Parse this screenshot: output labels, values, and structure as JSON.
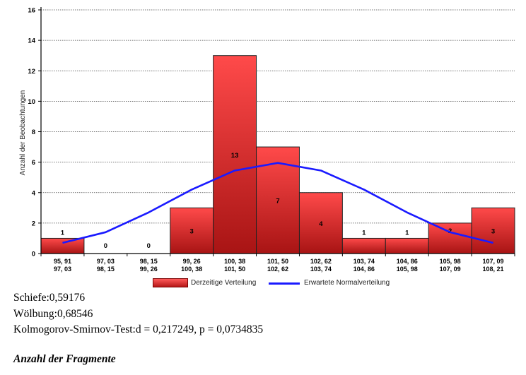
{
  "chart_data": {
    "type": "bar",
    "ylabel": "Anzahl der Beobachtungen",
    "ylim": [
      0,
      16
    ],
    "yticks": [
      "0",
      "2",
      "4",
      "6",
      "8",
      "10",
      "12",
      "14",
      "16"
    ],
    "grid": true,
    "categories": [
      [
        "95, 91",
        "97, 03"
      ],
      [
        "97, 03",
        "98, 15"
      ],
      [
        "98, 15",
        "99, 26"
      ],
      [
        "99, 26",
        "100, 38"
      ],
      [
        "100, 38",
        "101, 50"
      ],
      [
        "101, 50",
        "102, 62"
      ],
      [
        "102, 62",
        "103, 74"
      ],
      [
        "103, 74",
        "104, 86"
      ],
      [
        "104, 86",
        "105, 98"
      ],
      [
        "105, 98",
        "107, 09"
      ],
      [
        "107, 09",
        "108, 21"
      ]
    ],
    "series": [
      {
        "name": "Derzeitige Verteilung",
        "type": "bar",
        "values": [
          1,
          0,
          0,
          3,
          13,
          7,
          4,
          1,
          1,
          2,
          3
        ],
        "labels": [
          "1",
          "0",
          "0",
          "3",
          "13",
          "7",
          "4",
          "1",
          "1",
          "2",
          "3"
        ],
        "color": "#e8282a"
      },
      {
        "name": "Erwartete Normalverteilung",
        "type": "line",
        "values": [
          0.7,
          1.4,
          2.7,
          4.2,
          5.45,
          5.95,
          5.45,
          4.2,
          2.7,
          1.4,
          0.7
        ],
        "color": "#1a1aff"
      }
    ],
    "legend_position": "bottom"
  },
  "legend": {
    "bars_label": "Derzeitige Verteilung",
    "line_label": "Erwartete Normalverteilung"
  },
  "stats": {
    "skewness": "Schiefe:0,59176",
    "kurtosis": "Wölbung:0,68546",
    "ks_test": "Kolmogorov-Smirnov-Test:d = 0,217249, p = 0,0734835"
  },
  "footnote": "Anzahl der Fragmente"
}
